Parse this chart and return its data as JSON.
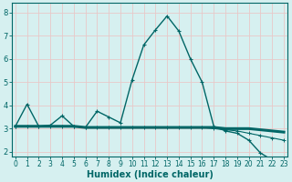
{
  "xlabel": "Humidex (Indice chaleur)",
  "background_color": "#d6f0f0",
  "grid_color": "#e8c8c8",
  "line_color": "#006666",
  "xlim": [
    -0.3,
    23.3
  ],
  "ylim": [
    1.8,
    8.4
  ],
  "xticks": [
    0,
    1,
    2,
    3,
    4,
    5,
    6,
    7,
    8,
    9,
    10,
    11,
    12,
    13,
    14,
    15,
    16,
    17,
    18,
    19,
    20,
    21,
    22,
    23
  ],
  "yticks": [
    2,
    3,
    4,
    5,
    6,
    7,
    8
  ],
  "curve1_x": [
    0,
    1,
    2,
    3,
    4,
    5,
    6,
    7,
    8,
    9,
    10,
    11,
    12,
    13,
    14,
    15,
    16,
    17,
    18,
    19,
    20,
    21,
    22,
    23
  ],
  "curve1_y": [
    3.1,
    4.05,
    3.1,
    3.15,
    3.55,
    3.1,
    3.05,
    3.75,
    3.5,
    3.25,
    5.1,
    6.6,
    7.25,
    7.85,
    7.2,
    6.0,
    5.0,
    3.1,
    2.9,
    2.8,
    2.5,
    1.95,
    1.65,
    1.55
  ],
  "curve2_x": [
    0,
    1,
    2,
    3,
    4,
    5,
    6,
    7,
    8,
    9,
    10,
    11,
    12,
    13,
    14,
    15,
    16,
    17,
    18,
    19,
    20,
    21,
    22,
    23
  ],
  "curve2_y": [
    3.1,
    3.1,
    3.1,
    3.1,
    3.1,
    3.1,
    3.05,
    3.05,
    3.05,
    3.05,
    3.05,
    3.05,
    3.05,
    3.05,
    3.05,
    3.05,
    3.05,
    3.05,
    3.0,
    3.0,
    3.0,
    2.95,
    2.9,
    2.85
  ],
  "curve3_x": [
    0,
    1,
    2,
    3,
    4,
    5,
    6,
    7,
    8,
    9,
    10,
    11,
    12,
    13,
    14,
    15,
    16,
    17,
    18,
    19,
    20,
    21,
    22,
    23
  ],
  "curve3_y": [
    3.1,
    3.1,
    3.1,
    3.1,
    3.1,
    3.1,
    3.05,
    3.05,
    3.05,
    3.05,
    3.05,
    3.05,
    3.05,
    3.05,
    3.05,
    3.05,
    3.05,
    3.0,
    2.95,
    2.9,
    2.8,
    2.7,
    2.6,
    2.5
  ]
}
